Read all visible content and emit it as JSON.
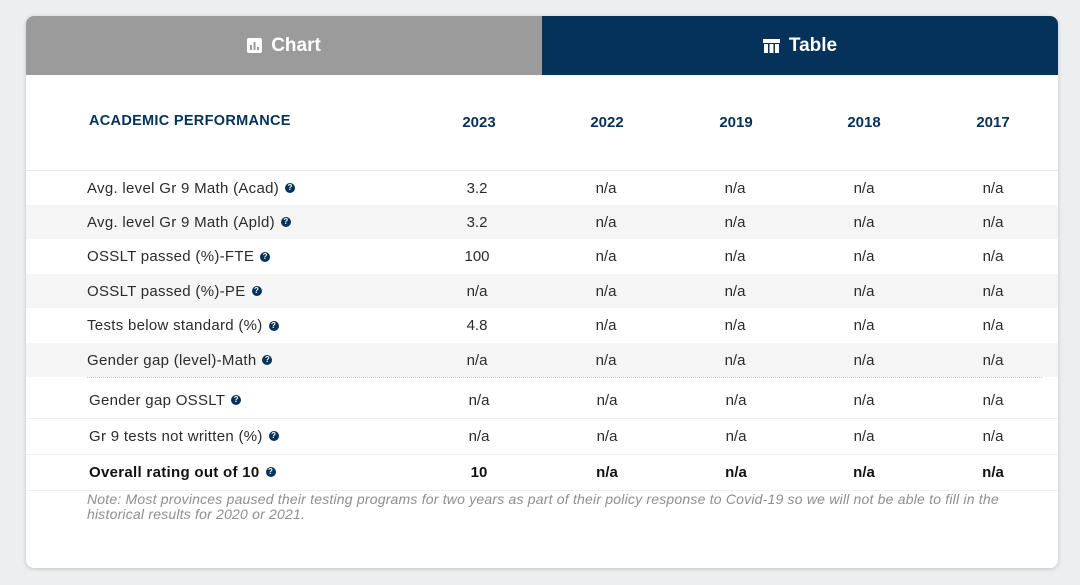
{
  "tabs": {
    "chart_label": "Chart",
    "table_label": "Table"
  },
  "table": {
    "title": "ACADEMIC PERFORMANCE",
    "years": [
      "2023",
      "2022",
      "2019",
      "2018",
      "2017"
    ],
    "rows": [
      {
        "label": "Avg. level Gr 9 Math (Acad)",
        "values": [
          "3.2",
          "n/a",
          "n/a",
          "n/a",
          "n/a"
        ]
      },
      {
        "label": "Avg. level Gr 9 Math (Apld)",
        "values": [
          "3.2",
          "n/a",
          "n/a",
          "n/a",
          "n/a"
        ]
      },
      {
        "label": "OSSLT passed (%)-FTE",
        "values": [
          "100",
          "n/a",
          "n/a",
          "n/a",
          "n/a"
        ]
      },
      {
        "label": "OSSLT passed (%)-PE",
        "values": [
          "n/a",
          "n/a",
          "n/a",
          "n/a",
          "n/a"
        ]
      },
      {
        "label": "Tests below standard (%)",
        "values": [
          "4.8",
          "n/a",
          "n/a",
          "n/a",
          "n/a"
        ]
      },
      {
        "label": "Gender gap (level)-Math",
        "values": [
          "n/a",
          "n/a",
          "n/a",
          "n/a",
          "n/a"
        ]
      },
      {
        "label": "Gender gap OSSLT",
        "values": [
          "n/a",
          "n/a",
          "n/a",
          "n/a",
          "n/a"
        ]
      },
      {
        "label": "Gr 9 tests not written (%)",
        "values": [
          "n/a",
          "n/a",
          "n/a",
          "n/a",
          "n/a"
        ]
      },
      {
        "label": "Overall rating out of 10",
        "values": [
          "10",
          "n/a",
          "n/a",
          "n/a",
          "n/a"
        ]
      }
    ],
    "help_glyph": "?",
    "note": "Note: Most provinces paused their testing programs for two years as part of their policy response to Covid-19 so we will not be able to fill in the historical results for 2020 or 2021."
  },
  "colors": {
    "navy": "#04325a",
    "tab_inactive": "#9b9b9b",
    "row_shade": "#f5f5f5"
  }
}
